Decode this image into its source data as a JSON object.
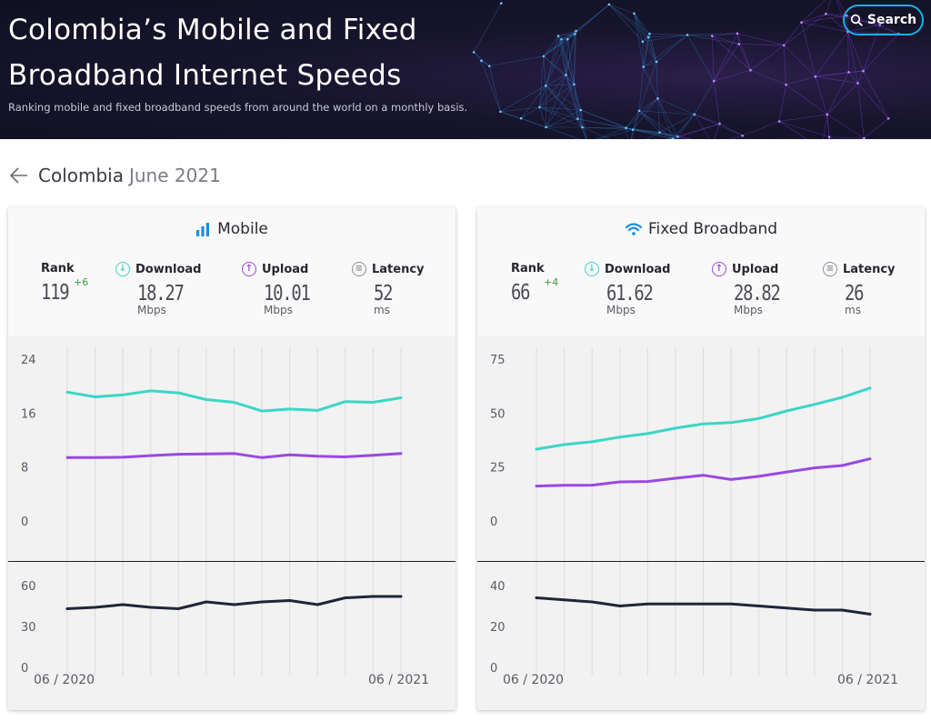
{
  "header": {
    "title": "Colombia’s Mobile and Fixed Broadband Internet Speeds",
    "subtitle": "Ranking mobile and fixed broadband speeds from around the world on a monthly basis.",
    "search_label": "Search"
  },
  "breadcrumb": {
    "country": "Colombia",
    "date": "June 2021"
  },
  "colors": {
    "download": "#3bd6c6",
    "upload": "#9a48e3",
    "latency": "#20253a"
  },
  "mobile": {
    "title": "Mobile",
    "rank_label": "Rank",
    "rank": "119",
    "rank_change": "+6",
    "download_label": "Download",
    "download": "18.27",
    "download_unit": "Mbps",
    "upload_label": "Upload",
    "upload": "10.01",
    "upload_unit": "Mbps",
    "latency_label": "Latency",
    "latency": "52",
    "latency_unit": "ms",
    "date_start": "06 / 2020",
    "date_end": "06 / 2021"
  },
  "fixed": {
    "title": "Fixed Broadband",
    "rank_label": "Rank",
    "rank": "66",
    "rank_change": "+4",
    "download_label": "Download",
    "download": "61.62",
    "download_unit": "Mbps",
    "upload_label": "Upload",
    "upload": "28.82",
    "upload_unit": "Mbps",
    "latency_label": "Latency",
    "latency": "26",
    "latency_unit": "ms",
    "date_start": "06 / 2020",
    "date_end": "06 / 2021"
  },
  "chart_data": [
    {
      "type": "line",
      "panel": "Mobile speed",
      "x": [
        "06/2020",
        "07/2020",
        "08/2020",
        "09/2020",
        "10/2020",
        "11/2020",
        "12/2020",
        "01/2021",
        "02/2021",
        "03/2021",
        "04/2021",
        "05/2021",
        "06/2021"
      ],
      "yticks": [
        0,
        8,
        16,
        24
      ],
      "ylim": [
        0,
        24
      ],
      "series": [
        {
          "name": "Download",
          "values": [
            19.1,
            18.4,
            18.7,
            19.3,
            19.0,
            18.0,
            17.6,
            16.3,
            16.6,
            16.4,
            17.7,
            17.6,
            18.27
          ]
        },
        {
          "name": "Upload",
          "values": [
            9.4,
            9.4,
            9.45,
            9.7,
            9.9,
            9.95,
            10.0,
            9.4,
            9.8,
            9.6,
            9.5,
            9.75,
            10.01
          ]
        }
      ]
    },
    {
      "type": "line",
      "panel": "Mobile latency",
      "x": [
        "06/2020",
        "07/2020",
        "08/2020",
        "09/2020",
        "10/2020",
        "11/2020",
        "12/2020",
        "01/2021",
        "02/2021",
        "03/2021",
        "04/2021",
        "05/2021",
        "06/2021"
      ],
      "yticks": [
        0,
        30,
        60
      ],
      "ylim": [
        0,
        60
      ],
      "series": [
        {
          "name": "Latency",
          "values": [
            43,
            44,
            46,
            44,
            43,
            48,
            46,
            48,
            49,
            46,
            51,
            52,
            52
          ]
        }
      ]
    },
    {
      "type": "line",
      "panel": "Fixed broadband speed",
      "x": [
        "06/2020",
        "07/2020",
        "08/2020",
        "09/2020",
        "10/2020",
        "11/2020",
        "12/2020",
        "01/2021",
        "02/2021",
        "03/2021",
        "04/2021",
        "05/2021",
        "06/2021"
      ],
      "yticks": [
        0,
        25,
        50,
        75
      ],
      "ylim": [
        0,
        75
      ],
      "series": [
        {
          "name": "Download",
          "values": [
            33.3,
            35.4,
            36.7,
            38.9,
            40.5,
            43.0,
            45.0,
            45.6,
            47.5,
            51.0,
            54.0,
            57.3,
            61.62
          ]
        },
        {
          "name": "Upload",
          "values": [
            16.2,
            16.5,
            16.6,
            18.1,
            18.3,
            19.8,
            21.2,
            19.2,
            20.7,
            22.7,
            24.6,
            25.7,
            28.82
          ]
        }
      ]
    },
    {
      "type": "line",
      "panel": "Fixed broadband latency",
      "x": [
        "06/2020",
        "07/2020",
        "08/2020",
        "09/2020",
        "10/2020",
        "11/2020",
        "12/2020",
        "01/2021",
        "02/2021",
        "03/2021",
        "04/2021",
        "05/2021",
        "06/2021"
      ],
      "yticks": [
        0,
        20,
        40
      ],
      "ylim": [
        0,
        40
      ],
      "series": [
        {
          "name": "Latency",
          "values": [
            34,
            33,
            32,
            30,
            31,
            31,
            31,
            31,
            30,
            29,
            28,
            28,
            26
          ]
        }
      ]
    }
  ]
}
